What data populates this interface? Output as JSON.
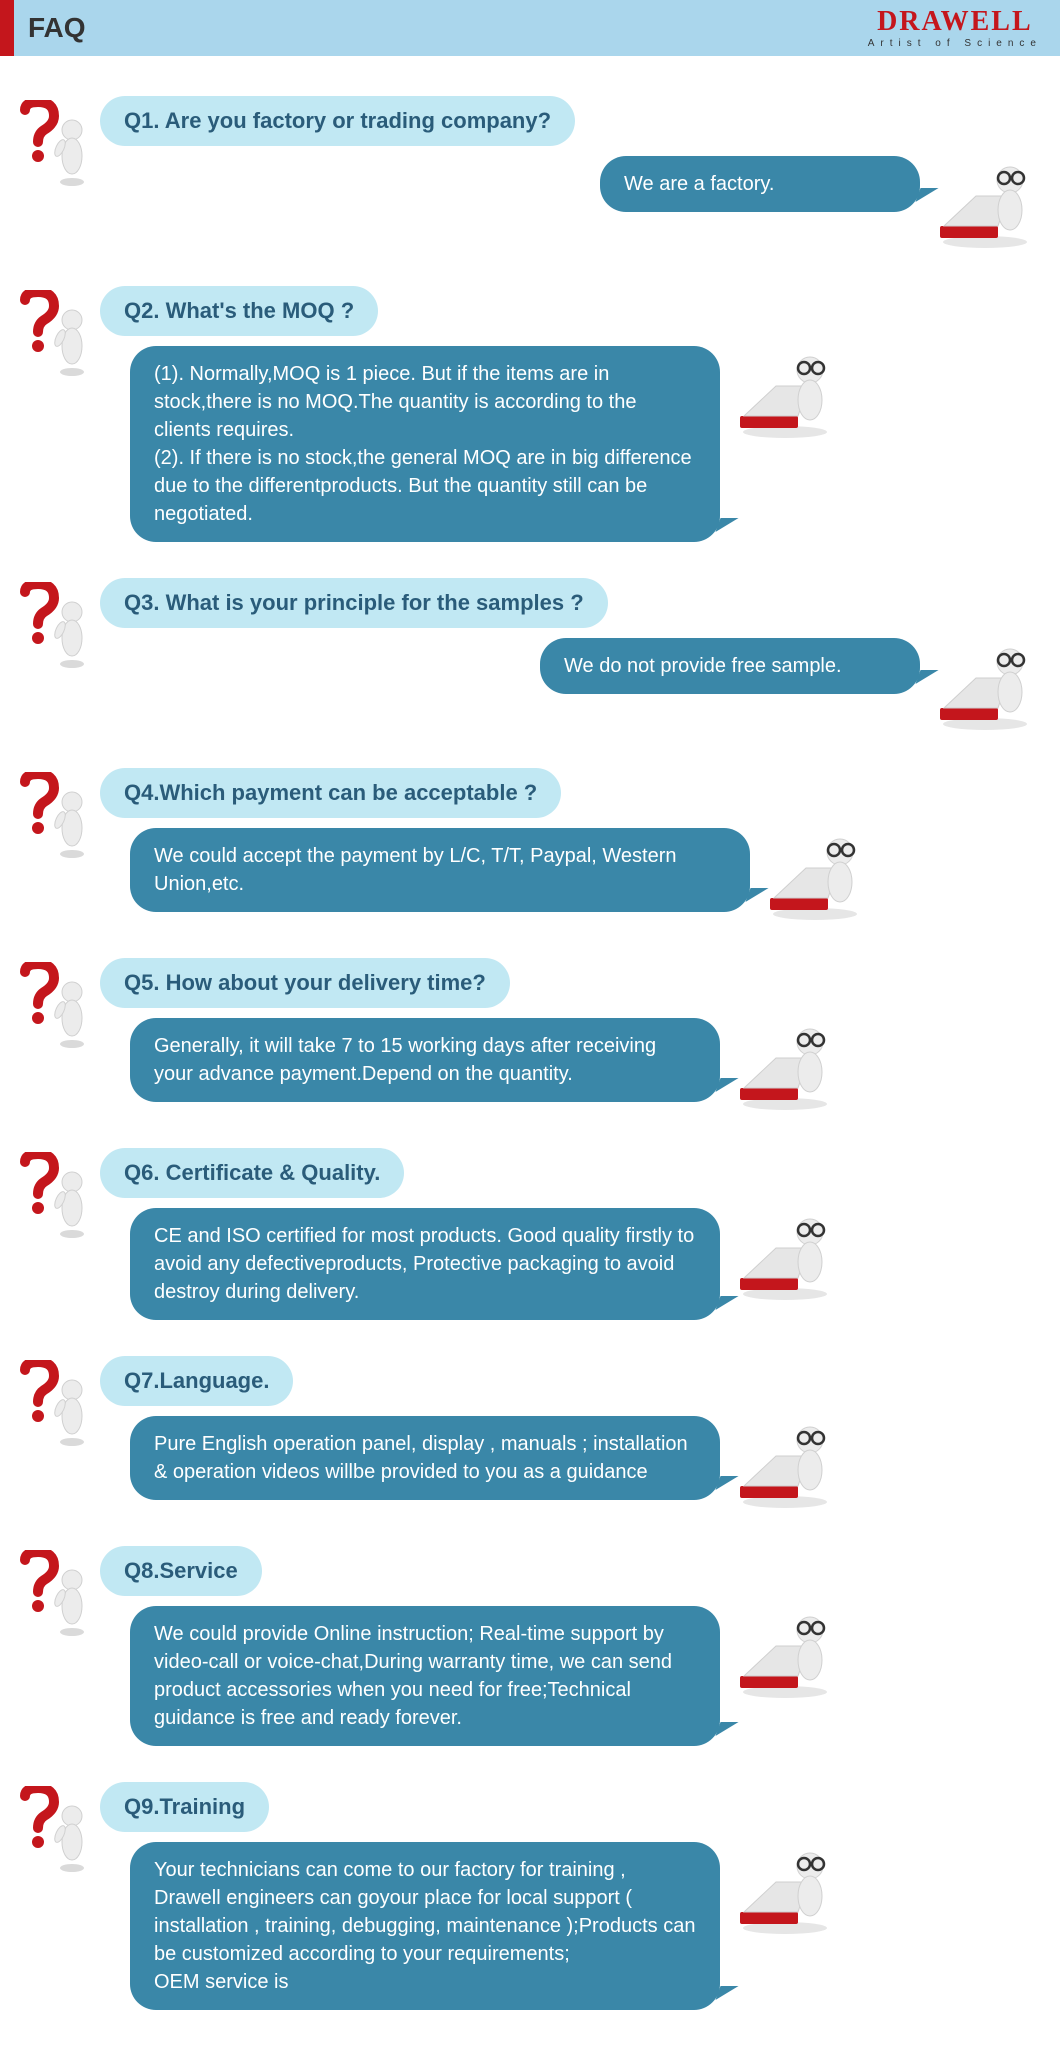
{
  "colors": {
    "header_bg": "#aad6ec",
    "header_accent": "#c4161c",
    "question_bg": "#c1e8f3",
    "question_text": "#2a5c7a",
    "answer_bg": "#3a87a8",
    "answer_text": "#ffffff",
    "logo_red": "#c4161c"
  },
  "header": {
    "title": "FAQ",
    "logo_main": "DRAWELL",
    "logo_sub": "Artist  of  Science"
  },
  "faqs": [
    {
      "q": "Q1. Are you factory or trading company?",
      "a": "We are a factory.",
      "answer_align": "right",
      "answer_width": 320
    },
    {
      "q": "Q2. What's the MOQ ?",
      "a": "(1). Normally,MOQ is 1 piece. But if the items are in stock,there is no MOQ.The quantity is according to the clients requires.\n(2). If there is no stock,the general MOQ are in big difference due to the differentproducts. But the quantity still can be negotiated.",
      "answer_align": "left",
      "answer_width": 590
    },
    {
      "q": "Q3. What is your principle for the samples ?",
      "a": "We do not provide free sample.",
      "answer_align": "right",
      "answer_width": 380
    },
    {
      "q": "Q4.Which payment can be acceptable ?",
      "a": "We could accept the payment by L/C, T/T, Paypal, Western Union,etc.",
      "answer_align": "left",
      "answer_width": 620
    },
    {
      "q": "Q5. How about your delivery time?",
      "a": "Generally, it will take 7 to 15 working days after receiving your advance payment.Depend on the quantity.",
      "answer_align": "left",
      "answer_width": 590
    },
    {
      "q": "Q6. Certificate & Quality.",
      "a": "CE and ISO certified for most products. Good quality firstly to avoid any defectiveproducts, Protective packaging to avoid destroy during delivery.",
      "answer_align": "left",
      "answer_width": 590
    },
    {
      "q": "Q7.Language.",
      "a": "Pure English operation panel, display , manuals ; installation & operation videos willbe provided to you as a guidance",
      "answer_align": "left",
      "answer_width": 590
    },
    {
      "q": "Q8.Service",
      "a": "We could provide Online instruction; Real-time support by video-call or voice-chat,During warranty time, we can send product accessories when you need for free;Technical guidance is free and ready forever.",
      "answer_align": "left",
      "answer_width": 590
    },
    {
      "q": "Q9.Training",
      "a": "Your technicians can come to our factory for training , Drawell engineers can goyour place for local support ( installation , training, debugging, maintenance );Products can be customized according to your requirements;\nOEM service is",
      "answer_align": "left",
      "answer_width": 590
    }
  ]
}
